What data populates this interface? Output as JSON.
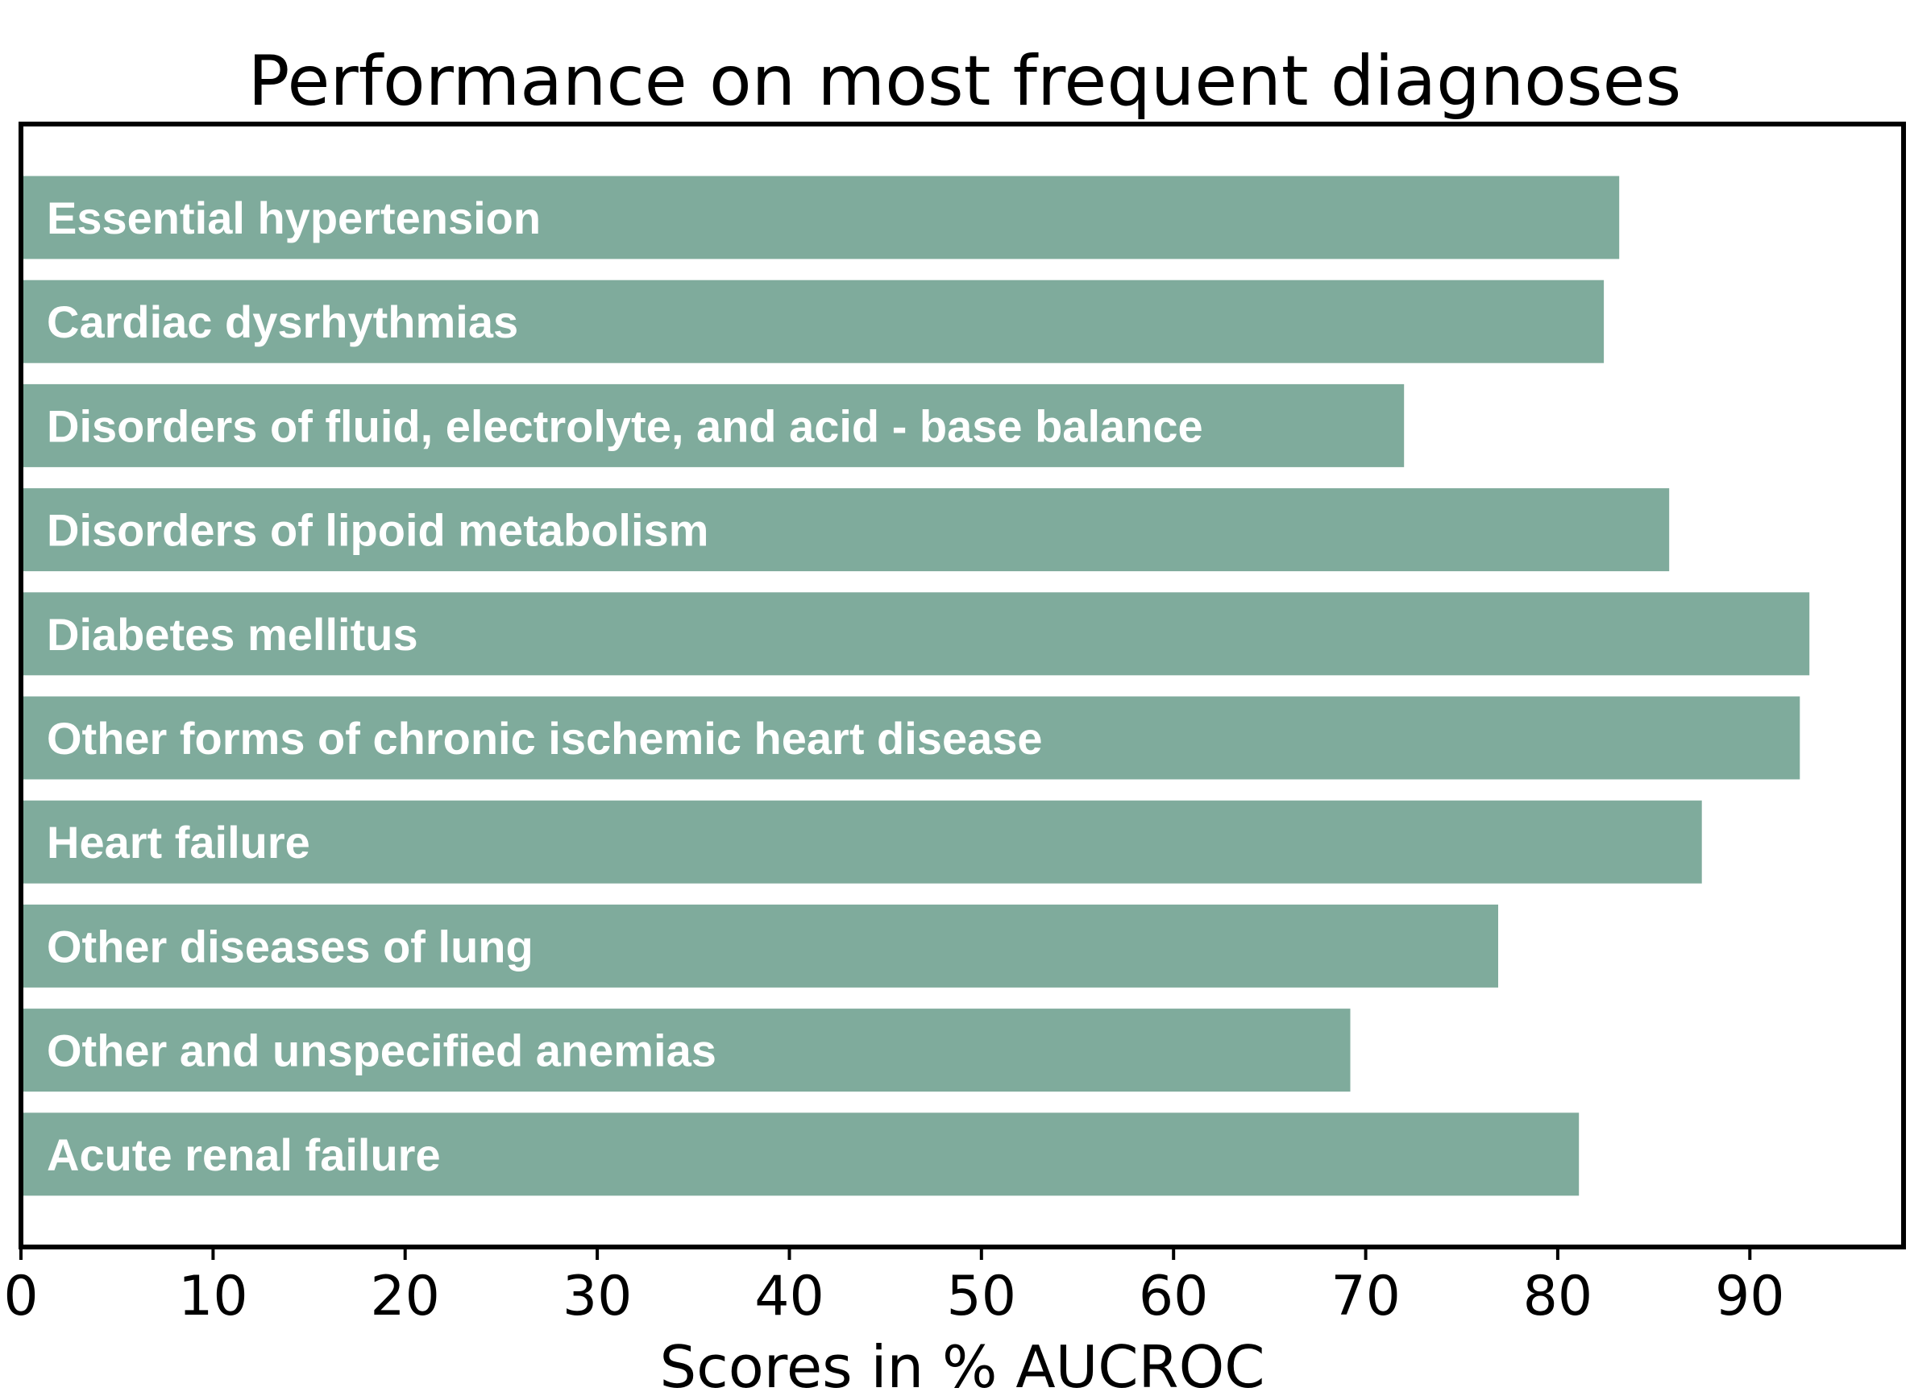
{
  "chart_data": {
    "type": "bar",
    "orientation": "horizontal",
    "title": "Performance on most frequent diagnoses",
    "xlabel": "Scores in % AUCROC",
    "ylabel": "",
    "xlim": [
      0,
      98
    ],
    "xticks": [
      0,
      10,
      20,
      30,
      40,
      50,
      60,
      70,
      80,
      90
    ],
    "grid": false,
    "bar_color": "#7fab9c",
    "categories": [
      "Essential hypertension",
      "Cardiac dysrhythmias",
      "Disorders of fluid, electrolyte, and acid - base balance",
      "Disorders of lipoid metabolism",
      "Diabetes mellitus",
      "Other forms of chronic ischemic heart disease",
      "Heart failure",
      "Other diseases of lung",
      "Other and unspecified anemias",
      "Acute renal failure"
    ],
    "values": [
      83.2,
      82.4,
      72.0,
      85.8,
      93.1,
      92.6,
      87.5,
      76.9,
      69.2,
      81.1
    ]
  }
}
